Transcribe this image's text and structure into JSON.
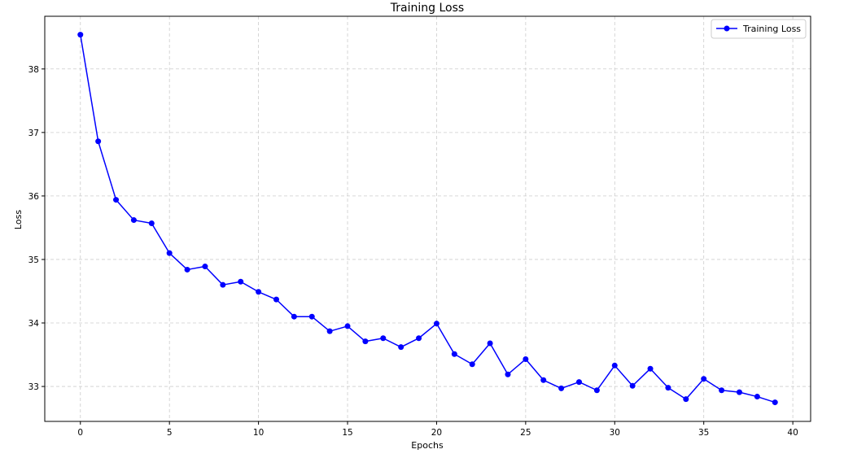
{
  "chart_data": {
    "type": "line",
    "title": "Training Loss",
    "xlabel": "Epochs",
    "ylabel": "Loss",
    "xlim": [
      -2,
      41
    ],
    "ylim": [
      32.45,
      38.83
    ],
    "xticks": [
      0,
      5,
      10,
      15,
      20,
      25,
      30,
      35,
      40
    ],
    "yticks": [
      33,
      34,
      35,
      36,
      37,
      38
    ],
    "grid": true,
    "grid_style": "dashed",
    "legend_position": "top-right",
    "x": [
      0,
      1,
      2,
      3,
      4,
      5,
      6,
      7,
      8,
      9,
      10,
      11,
      12,
      13,
      14,
      15,
      16,
      17,
      18,
      19,
      20,
      21,
      22,
      23,
      24,
      25,
      26,
      27,
      28,
      29,
      30,
      31,
      32,
      33,
      34,
      35,
      36,
      37,
      38,
      39
    ],
    "series": [
      {
        "name": "Training Loss",
        "color": "#0000ff",
        "marker": "circle",
        "values": [
          38.54,
          36.86,
          35.94,
          35.62,
          35.57,
          35.1,
          34.84,
          34.89,
          34.6,
          34.65,
          34.49,
          34.37,
          34.1,
          34.1,
          33.87,
          33.95,
          33.71,
          33.76,
          33.62,
          33.76,
          33.99,
          33.51,
          33.35,
          33.68,
          33.19,
          33.43,
          33.1,
          32.97,
          33.07,
          32.94,
          33.33,
          33.01,
          33.28,
          32.98,
          32.8,
          33.12,
          32.94,
          32.91,
          32.84,
          32.75
        ]
      }
    ]
  }
}
